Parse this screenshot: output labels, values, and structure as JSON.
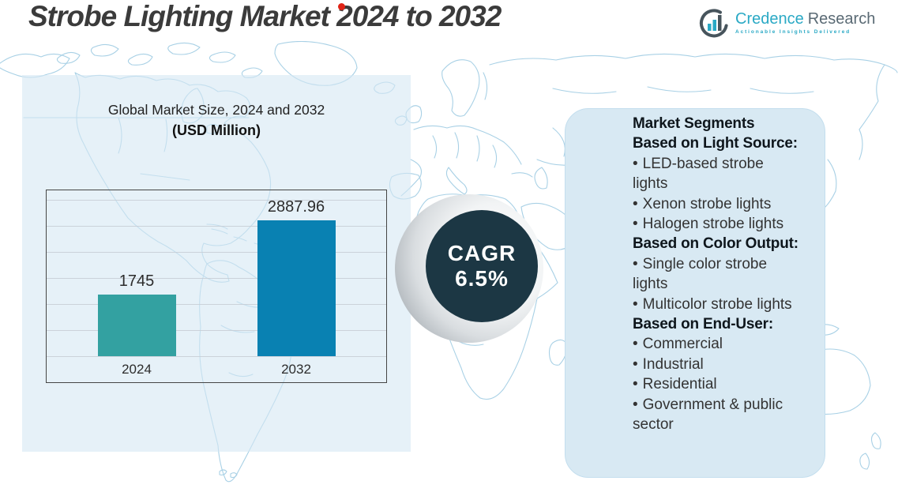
{
  "header": {
    "title": "Strobe Lighting Market 2024 to 2032"
  },
  "logo": {
    "brand_primary": "Credence",
    "brand_secondary": "Research",
    "tagline": "Actionable Insights Delivered"
  },
  "chart": {
    "title_line1": "Global Market Size, 2024 and 2032",
    "title_line2": "(USD Million)"
  },
  "chart_data": {
    "type": "bar",
    "title": "Global Market Size, 2024 and 2032",
    "subtitle": "(USD Million)",
    "categories": [
      "2024",
      "2032"
    ],
    "values": [
      1745,
      2887.96
    ],
    "value_labels": [
      "1745",
      "2887.96"
    ],
    "series_colors": [
      "#33a1a1",
      "#0981b2"
    ],
    "xlabel": "",
    "ylabel": "",
    "ylim": [
      800,
      3200
    ],
    "gridline_step": 400,
    "grid": true,
    "legend": false
  },
  "cagr": {
    "label": "CAGR",
    "value": "6.5%"
  },
  "segments_panel": {
    "bullet": "•",
    "title": "Market Segments",
    "sections": [
      {
        "heading": "Based on Light Source:",
        "items": [
          "LED-based strobe lights",
          "Xenon strobe lights",
          "Halogen strobe lights"
        ]
      },
      {
        "heading": "Based on Color Output:",
        "items": [
          "Single color strobe lights",
          "Multicolor strobe lights"
        ]
      },
      {
        "heading": "Based on End-User:",
        "items": [
          "Commercial",
          "Industrial",
          "Residential",
          "Government & public sector"
        ]
      }
    ]
  },
  "colors": {
    "bar_2024": "#33a1a1",
    "bar_2032": "#0981b2",
    "cagr_circle": "#1c3744",
    "panel_bg": "#d8e9f3",
    "map_line": "#9fcce3",
    "accent_red": "#e02316",
    "brand_teal": "#2aa9c5"
  }
}
